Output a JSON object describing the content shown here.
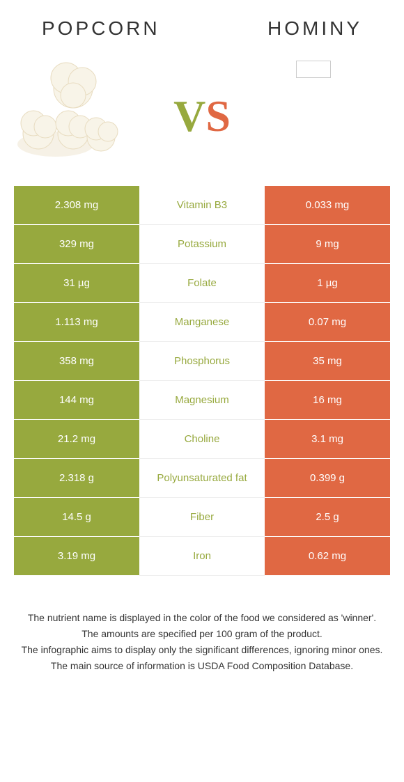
{
  "header": {
    "left_title": "POPCORN",
    "right_title": "HOMINY"
  },
  "vs": {
    "v": "V",
    "s": "S"
  },
  "colors": {
    "left_bg": "#97a93e",
    "right_bg": "#e06843",
    "left_text": "#97a93e",
    "right_text": "#e06843"
  },
  "rows": [
    {
      "left": "2.308 mg",
      "center": "Vitamin B3",
      "right": "0.033 mg",
      "winner": "left"
    },
    {
      "left": "329 mg",
      "center": "Potassium",
      "right": "9 mg",
      "winner": "left"
    },
    {
      "left": "31 µg",
      "center": "Folate",
      "right": "1 µg",
      "winner": "left"
    },
    {
      "left": "1.113 mg",
      "center": "Manganese",
      "right": "0.07 mg",
      "winner": "left"
    },
    {
      "left": "358 mg",
      "center": "Phosphorus",
      "right": "35 mg",
      "winner": "left"
    },
    {
      "left": "144 mg",
      "center": "Magnesium",
      "right": "16 mg",
      "winner": "left"
    },
    {
      "left": "21.2 mg",
      "center": "Choline",
      "right": "3.1 mg",
      "winner": "left"
    },
    {
      "left": "2.318 g",
      "center": "Polyunsaturated fat",
      "right": "0.399 g",
      "winner": "left"
    },
    {
      "left": "14.5 g",
      "center": "Fiber",
      "right": "2.5 g",
      "winner": "left"
    },
    {
      "left": "3.19 mg",
      "center": "Iron",
      "right": "0.62 mg",
      "winner": "left"
    }
  ],
  "footer": {
    "line1": "The nutrient name is displayed in the color of the food we considered as 'winner'.",
    "line2": "The amounts are specified per 100 gram of the product.",
    "line3": "The infographic aims to display only the significant differences, ignoring minor ones.",
    "line4": "The main source of information is USDA Food Composition Database."
  }
}
